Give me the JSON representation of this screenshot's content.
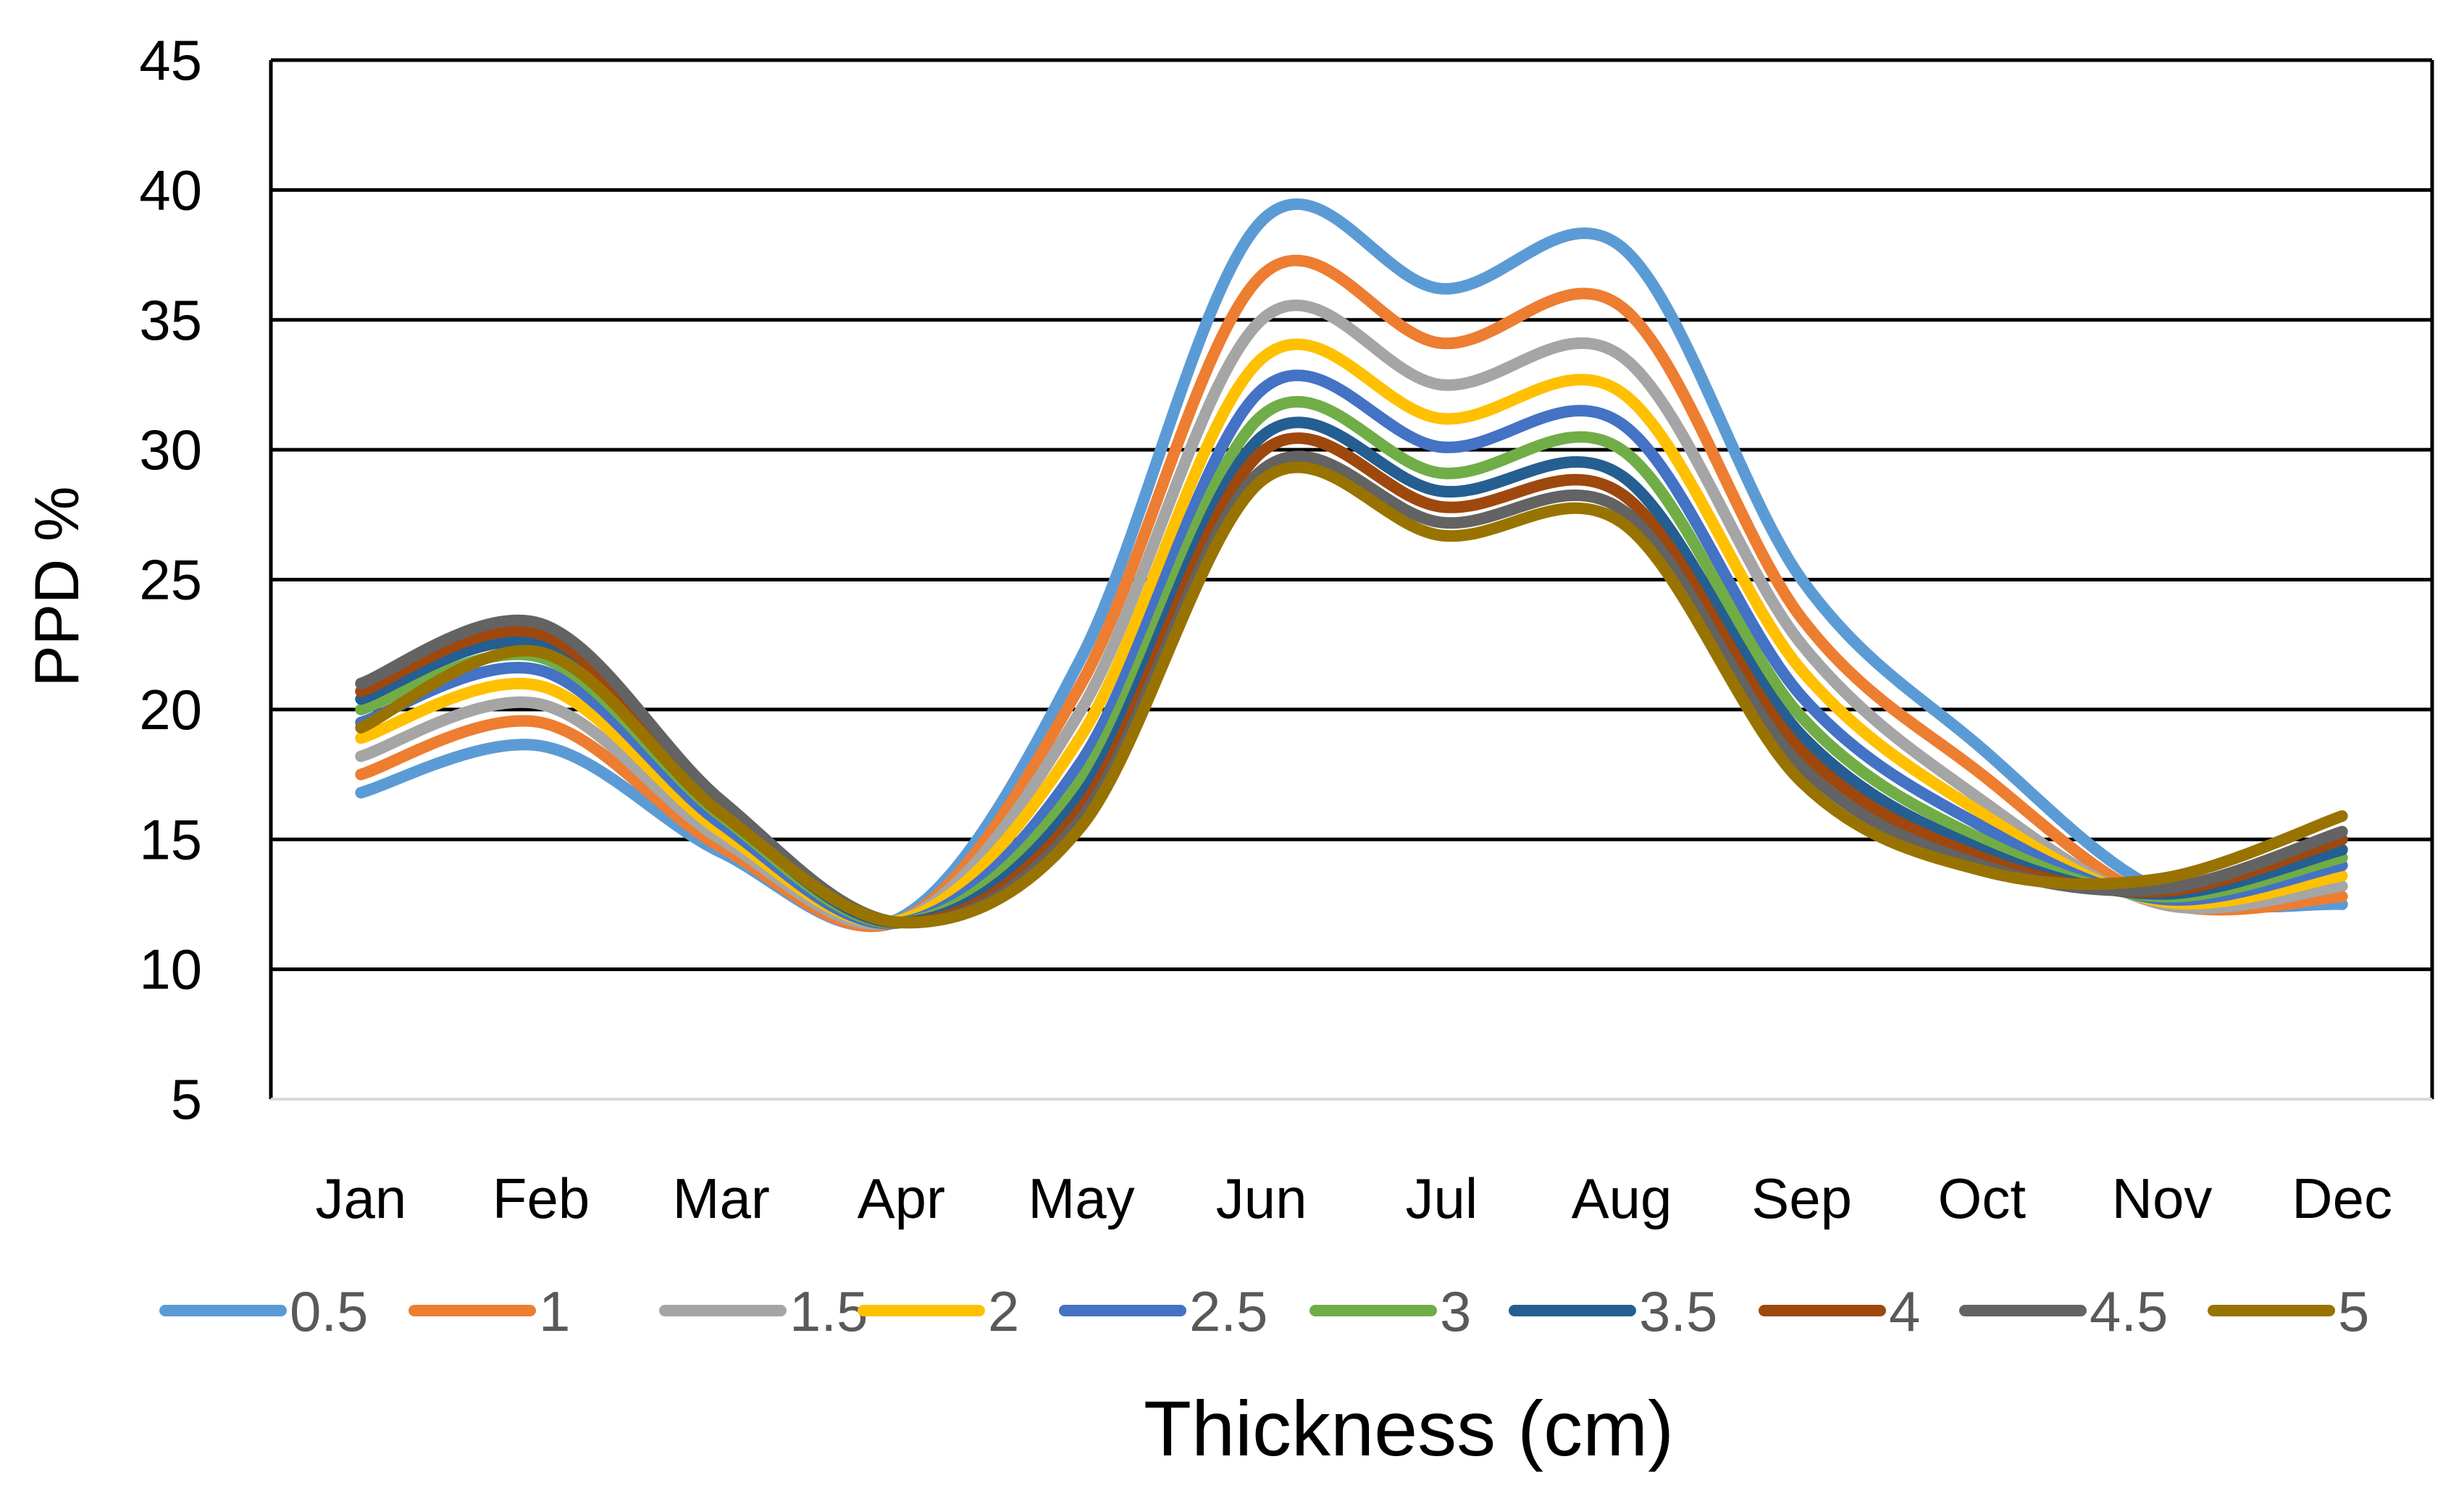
{
  "chart_data": {
    "type": "line",
    "title": "",
    "xlabel": "Thickness (cm)",
    "ylabel": "PPD %",
    "ylim": [
      5,
      45
    ],
    "yticks": [
      5,
      10,
      15,
      20,
      25,
      30,
      35,
      40,
      45
    ],
    "grid": true,
    "legend_position": "bottom",
    "categories": [
      "Jan",
      "Feb",
      "Mar",
      "Apr",
      "May",
      "Jun",
      "Jul",
      "Aug",
      "Sep",
      "Oct",
      "Nov",
      "Dec"
    ],
    "series": [
      {
        "name": "0.5",
        "color": "#5B9BD5",
        "values": [
          16.8,
          18.6,
          14.5,
          12.0,
          22.0,
          38.8,
          36.2,
          37.8,
          25.0,
          18.5,
          13.0,
          12.5
        ]
      },
      {
        "name": "1",
        "color": "#ED7D31",
        "values": [
          17.5,
          19.5,
          14.7,
          11.9,
          21.0,
          36.7,
          34.1,
          35.5,
          23.5,
          17.5,
          12.6,
          12.8
        ]
      },
      {
        "name": "1.5",
        "color": "#A5A5A5",
        "values": [
          18.2,
          20.2,
          15.0,
          11.9,
          20.0,
          35.0,
          32.5,
          33.6,
          22.5,
          16.5,
          12.5,
          13.2
        ]
      },
      {
        "name": "2",
        "color": "#FFC000",
        "values": [
          18.9,
          20.9,
          15.3,
          11.9,
          19.0,
          33.5,
          31.2,
          32.2,
          21.5,
          16.0,
          12.6,
          13.6
        ]
      },
      {
        "name": "2.5",
        "color": "#4472C4",
        "values": [
          19.5,
          21.5,
          15.6,
          11.8,
          18.0,
          32.3,
          30.1,
          31.0,
          20.5,
          15.5,
          12.7,
          14.0
        ]
      },
      {
        "name": "3",
        "color": "#70AD47",
        "values": [
          20.0,
          22.0,
          15.9,
          11.8,
          17.3,
          31.3,
          29.1,
          30.0,
          19.7,
          15.0,
          12.8,
          14.3
        ]
      },
      {
        "name": "3.5",
        "color": "#255E91",
        "values": [
          20.4,
          22.5,
          16.1,
          11.8,
          16.7,
          30.5,
          28.4,
          29.0,
          19.0,
          14.6,
          12.9,
          14.6
        ]
      },
      {
        "name": "4",
        "color": "#9E480E",
        "values": [
          20.7,
          22.9,
          16.3,
          11.8,
          16.2,
          29.9,
          27.8,
          28.3,
          18.4,
          14.3,
          13.0,
          15.0
        ]
      },
      {
        "name": "4.5",
        "color": "#636363",
        "values": [
          21.0,
          23.3,
          16.5,
          11.8,
          15.8,
          29.2,
          27.2,
          27.7,
          17.8,
          14.0,
          13.1,
          15.3
        ]
      },
      {
        "name": "5",
        "color": "#997300",
        "values": [
          19.3,
          22.2,
          16.0,
          11.8,
          15.5,
          28.8,
          26.7,
          27.2,
          17.2,
          13.8,
          13.5,
          15.9
        ]
      }
    ]
  }
}
